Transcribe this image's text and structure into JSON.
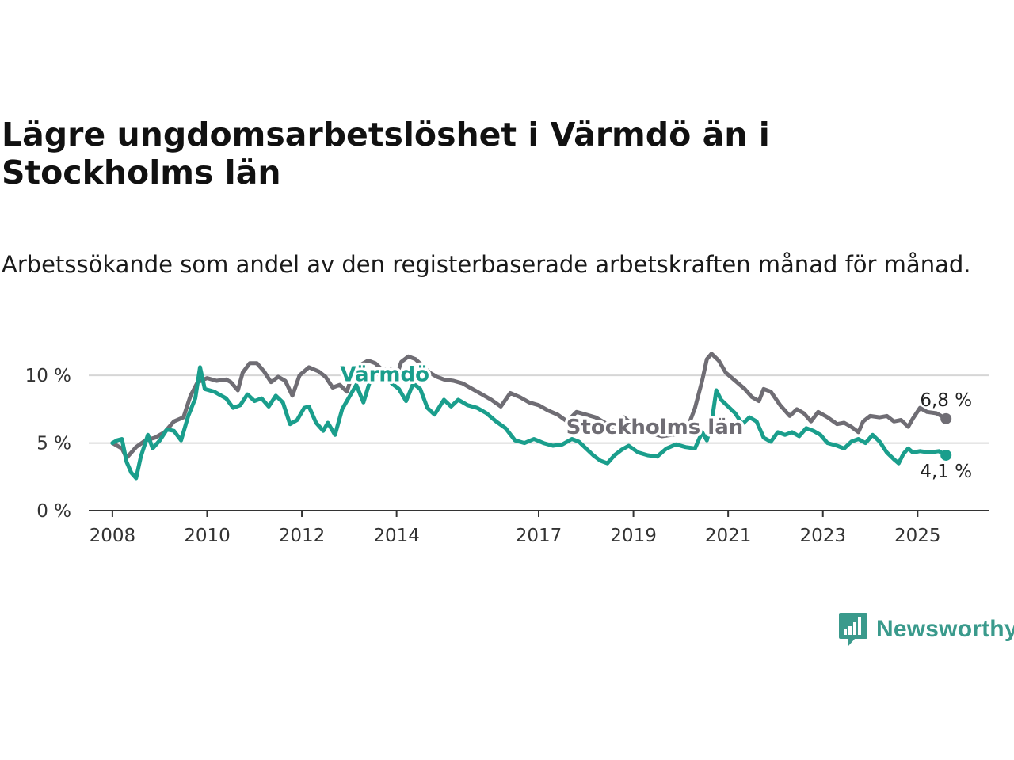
{
  "title": "Lägre ungdomsarbetslöshet i Värmdö än i Stockholms län",
  "subtitle": "Arbetssökande som andel av den registerbaserade arbetskraften månad för månad.",
  "brand": {
    "name": "Newsworthy"
  },
  "chart_data": {
    "type": "line",
    "ylim": [
      0,
      12
    ],
    "xlim": [
      2007.5,
      2026.5
    ],
    "y_ticks": [
      {
        "value": 0,
        "label": "0 %"
      },
      {
        "value": 5,
        "label": "5 %"
      },
      {
        "value": 10,
        "label": "10 %"
      }
    ],
    "x_ticks": [
      {
        "value": 2008,
        "label": "2008"
      },
      {
        "value": 2010,
        "label": "2010"
      },
      {
        "value": 2012,
        "label": "2012"
      },
      {
        "value": 2014,
        "label": "2014"
      },
      {
        "value": 2017,
        "label": "2017"
      },
      {
        "value": 2019,
        "label": "2019"
      },
      {
        "value": 2021,
        "label": "2021"
      },
      {
        "value": 2023,
        "label": "2023"
      },
      {
        "value": 2025,
        "label": "2025"
      }
    ],
    "grid": true,
    "series": [
      {
        "name": "Stockholms län",
        "color": "#6f6d74",
        "end_label": "6,8 %",
        "points": [
          [
            2008.0,
            5.0
          ],
          [
            2008.2,
            4.6
          ],
          [
            2008.3,
            3.9
          ],
          [
            2008.5,
            4.7
          ],
          [
            2008.7,
            5.2
          ],
          [
            2008.9,
            5.4
          ],
          [
            2009.1,
            5.8
          ],
          [
            2009.3,
            6.6
          ],
          [
            2009.5,
            6.9
          ],
          [
            2009.65,
            8.5
          ],
          [
            2009.8,
            9.5
          ],
          [
            2010.0,
            9.8
          ],
          [
            2010.2,
            9.6
          ],
          [
            2010.4,
            9.7
          ],
          [
            2010.5,
            9.5
          ],
          [
            2010.65,
            8.9
          ],
          [
            2010.75,
            10.2
          ],
          [
            2010.9,
            10.9
          ],
          [
            2011.05,
            10.9
          ],
          [
            2011.2,
            10.3
          ],
          [
            2011.35,
            9.5
          ],
          [
            2011.5,
            9.9
          ],
          [
            2011.65,
            9.6
          ],
          [
            2011.8,
            8.5
          ],
          [
            2011.95,
            10.0
          ],
          [
            2012.15,
            10.6
          ],
          [
            2012.35,
            10.3
          ],
          [
            2012.5,
            9.9
          ],
          [
            2012.65,
            9.1
          ],
          [
            2012.8,
            9.3
          ],
          [
            2012.95,
            8.8
          ],
          [
            2013.05,
            9.9
          ],
          [
            2013.25,
            10.8
          ],
          [
            2013.4,
            11.1
          ],
          [
            2013.55,
            10.9
          ],
          [
            2013.7,
            10.4
          ],
          [
            2013.85,
            10.5
          ],
          [
            2014.0,
            10.0
          ],
          [
            2014.1,
            11.0
          ],
          [
            2014.25,
            11.4
          ],
          [
            2014.4,
            11.2
          ],
          [
            2014.55,
            10.7
          ],
          [
            2014.7,
            10.2
          ],
          [
            2014.85,
            9.9
          ],
          [
            2015.0,
            9.7
          ],
          [
            2015.2,
            9.6
          ],
          [
            2015.4,
            9.4
          ],
          [
            2015.6,
            9.0
          ],
          [
            2015.8,
            8.6
          ],
          [
            2016.0,
            8.2
          ],
          [
            2016.2,
            7.7
          ],
          [
            2016.4,
            8.7
          ],
          [
            2016.6,
            8.4
          ],
          [
            2016.8,
            8.0
          ],
          [
            2017.0,
            7.8
          ],
          [
            2017.2,
            7.4
          ],
          [
            2017.4,
            7.1
          ],
          [
            2017.6,
            6.6
          ],
          [
            2017.8,
            7.3
          ],
          [
            2018.0,
            7.1
          ],
          [
            2018.2,
            6.9
          ],
          [
            2018.4,
            6.5
          ],
          [
            2018.6,
            6.1
          ],
          [
            2018.8,
            6.9
          ],
          [
            2019.0,
            6.3
          ],
          [
            2019.2,
            6.0
          ],
          [
            2019.4,
            5.7
          ],
          [
            2019.6,
            5.5
          ],
          [
            2019.8,
            5.6
          ],
          [
            2020.0,
            5.7
          ],
          [
            2020.15,
            6.2
          ],
          [
            2020.3,
            7.6
          ],
          [
            2020.45,
            9.6
          ],
          [
            2020.55,
            11.2
          ],
          [
            2020.65,
            11.6
          ],
          [
            2020.8,
            11.1
          ],
          [
            2020.95,
            10.2
          ],
          [
            2021.15,
            9.6
          ],
          [
            2021.35,
            9.0
          ],
          [
            2021.5,
            8.4
          ],
          [
            2021.65,
            8.1
          ],
          [
            2021.75,
            9.0
          ],
          [
            2021.9,
            8.8
          ],
          [
            2022.1,
            7.8
          ],
          [
            2022.3,
            7.0
          ],
          [
            2022.45,
            7.5
          ],
          [
            2022.6,
            7.2
          ],
          [
            2022.75,
            6.6
          ],
          [
            2022.9,
            7.3
          ],
          [
            2023.1,
            6.9
          ],
          [
            2023.3,
            6.4
          ],
          [
            2023.45,
            6.5
          ],
          [
            2023.6,
            6.2
          ],
          [
            2023.75,
            5.8
          ],
          [
            2023.85,
            6.6
          ],
          [
            2024.0,
            7.0
          ],
          [
            2024.2,
            6.9
          ],
          [
            2024.35,
            7.0
          ],
          [
            2024.5,
            6.6
          ],
          [
            2024.65,
            6.7
          ],
          [
            2024.8,
            6.2
          ],
          [
            2024.9,
            6.8
          ],
          [
            2025.05,
            7.6
          ],
          [
            2025.2,
            7.3
          ],
          [
            2025.4,
            7.2
          ],
          [
            2025.6,
            6.8
          ]
        ]
      },
      {
        "name": "Värmdö",
        "color": "#1a9e8c",
        "end_label": "4,1 %",
        "points": [
          [
            2008.0,
            5.0
          ],
          [
            2008.1,
            5.2
          ],
          [
            2008.2,
            5.3
          ],
          [
            2008.3,
            3.6
          ],
          [
            2008.4,
            2.8
          ],
          [
            2008.5,
            2.4
          ],
          [
            2008.6,
            4.0
          ],
          [
            2008.75,
            5.6
          ],
          [
            2008.85,
            4.6
          ],
          [
            2009.0,
            5.2
          ],
          [
            2009.15,
            6.0
          ],
          [
            2009.3,
            5.9
          ],
          [
            2009.45,
            5.2
          ],
          [
            2009.6,
            7.0
          ],
          [
            2009.75,
            8.3
          ],
          [
            2009.85,
            10.6
          ],
          [
            2009.95,
            9.0
          ],
          [
            2010.15,
            8.8
          ],
          [
            2010.4,
            8.3
          ],
          [
            2010.55,
            7.6
          ],
          [
            2010.7,
            7.8
          ],
          [
            2010.85,
            8.6
          ],
          [
            2011.0,
            8.1
          ],
          [
            2011.15,
            8.3
          ],
          [
            2011.3,
            7.7
          ],
          [
            2011.45,
            8.5
          ],
          [
            2011.6,
            8.0
          ],
          [
            2011.75,
            6.4
          ],
          [
            2011.9,
            6.7
          ],
          [
            2012.05,
            7.6
          ],
          [
            2012.15,
            7.7
          ],
          [
            2012.3,
            6.5
          ],
          [
            2012.45,
            5.9
          ],
          [
            2012.55,
            6.5
          ],
          [
            2012.7,
            5.6
          ],
          [
            2012.85,
            7.5
          ],
          [
            2013.0,
            8.4
          ],
          [
            2013.15,
            9.3
          ],
          [
            2013.3,
            8.0
          ],
          [
            2013.45,
            9.7
          ],
          [
            2013.6,
            10.3
          ],
          [
            2013.75,
            10.0
          ],
          [
            2013.9,
            9.4
          ],
          [
            2014.05,
            9.0
          ],
          [
            2014.2,
            8.1
          ],
          [
            2014.35,
            9.4
          ],
          [
            2014.5,
            9.0
          ],
          [
            2014.65,
            7.6
          ],
          [
            2014.8,
            7.1
          ],
          [
            2015.0,
            8.2
          ],
          [
            2015.15,
            7.7
          ],
          [
            2015.3,
            8.2
          ],
          [
            2015.5,
            7.8
          ],
          [
            2015.7,
            7.6
          ],
          [
            2015.9,
            7.2
          ],
          [
            2016.1,
            6.6
          ],
          [
            2016.3,
            6.1
          ],
          [
            2016.5,
            5.2
          ],
          [
            2016.7,
            5.0
          ],
          [
            2016.9,
            5.3
          ],
          [
            2017.1,
            5.0
          ],
          [
            2017.3,
            4.8
          ],
          [
            2017.5,
            4.9
          ],
          [
            2017.7,
            5.3
          ],
          [
            2017.85,
            5.1
          ],
          [
            2018.0,
            4.6
          ],
          [
            2018.15,
            4.1
          ],
          [
            2018.3,
            3.7
          ],
          [
            2018.45,
            3.5
          ],
          [
            2018.6,
            4.1
          ],
          [
            2018.75,
            4.5
          ],
          [
            2018.9,
            4.8
          ],
          [
            2019.1,
            4.3
          ],
          [
            2019.3,
            4.1
          ],
          [
            2019.5,
            4.0
          ],
          [
            2019.7,
            4.6
          ],
          [
            2019.9,
            4.9
          ],
          [
            2020.1,
            4.7
          ],
          [
            2020.3,
            4.6
          ],
          [
            2020.45,
            5.8
          ],
          [
            2020.55,
            5.2
          ],
          [
            2020.65,
            6.5
          ],
          [
            2020.75,
            8.9
          ],
          [
            2020.85,
            8.2
          ],
          [
            2021.0,
            7.7
          ],
          [
            2021.15,
            7.2
          ],
          [
            2021.3,
            6.4
          ],
          [
            2021.45,
            6.9
          ],
          [
            2021.6,
            6.6
          ],
          [
            2021.75,
            5.4
          ],
          [
            2021.9,
            5.1
          ],
          [
            2022.05,
            5.8
          ],
          [
            2022.2,
            5.6
          ],
          [
            2022.35,
            5.8
          ],
          [
            2022.5,
            5.5
          ],
          [
            2022.65,
            6.1
          ],
          [
            2022.8,
            5.9
          ],
          [
            2022.95,
            5.6
          ],
          [
            2023.1,
            5.0
          ],
          [
            2023.3,
            4.8
          ],
          [
            2023.45,
            4.6
          ],
          [
            2023.6,
            5.1
          ],
          [
            2023.75,
            5.3
          ],
          [
            2023.9,
            5.0
          ],
          [
            2024.05,
            5.6
          ],
          [
            2024.2,
            5.1
          ],
          [
            2024.35,
            4.3
          ],
          [
            2024.5,
            3.8
          ],
          [
            2024.6,
            3.5
          ],
          [
            2024.7,
            4.2
          ],
          [
            2024.8,
            4.6
          ],
          [
            2024.9,
            4.3
          ],
          [
            2025.05,
            4.4
          ],
          [
            2025.25,
            4.3
          ],
          [
            2025.45,
            4.4
          ],
          [
            2025.6,
            4.1
          ]
        ]
      }
    ]
  }
}
